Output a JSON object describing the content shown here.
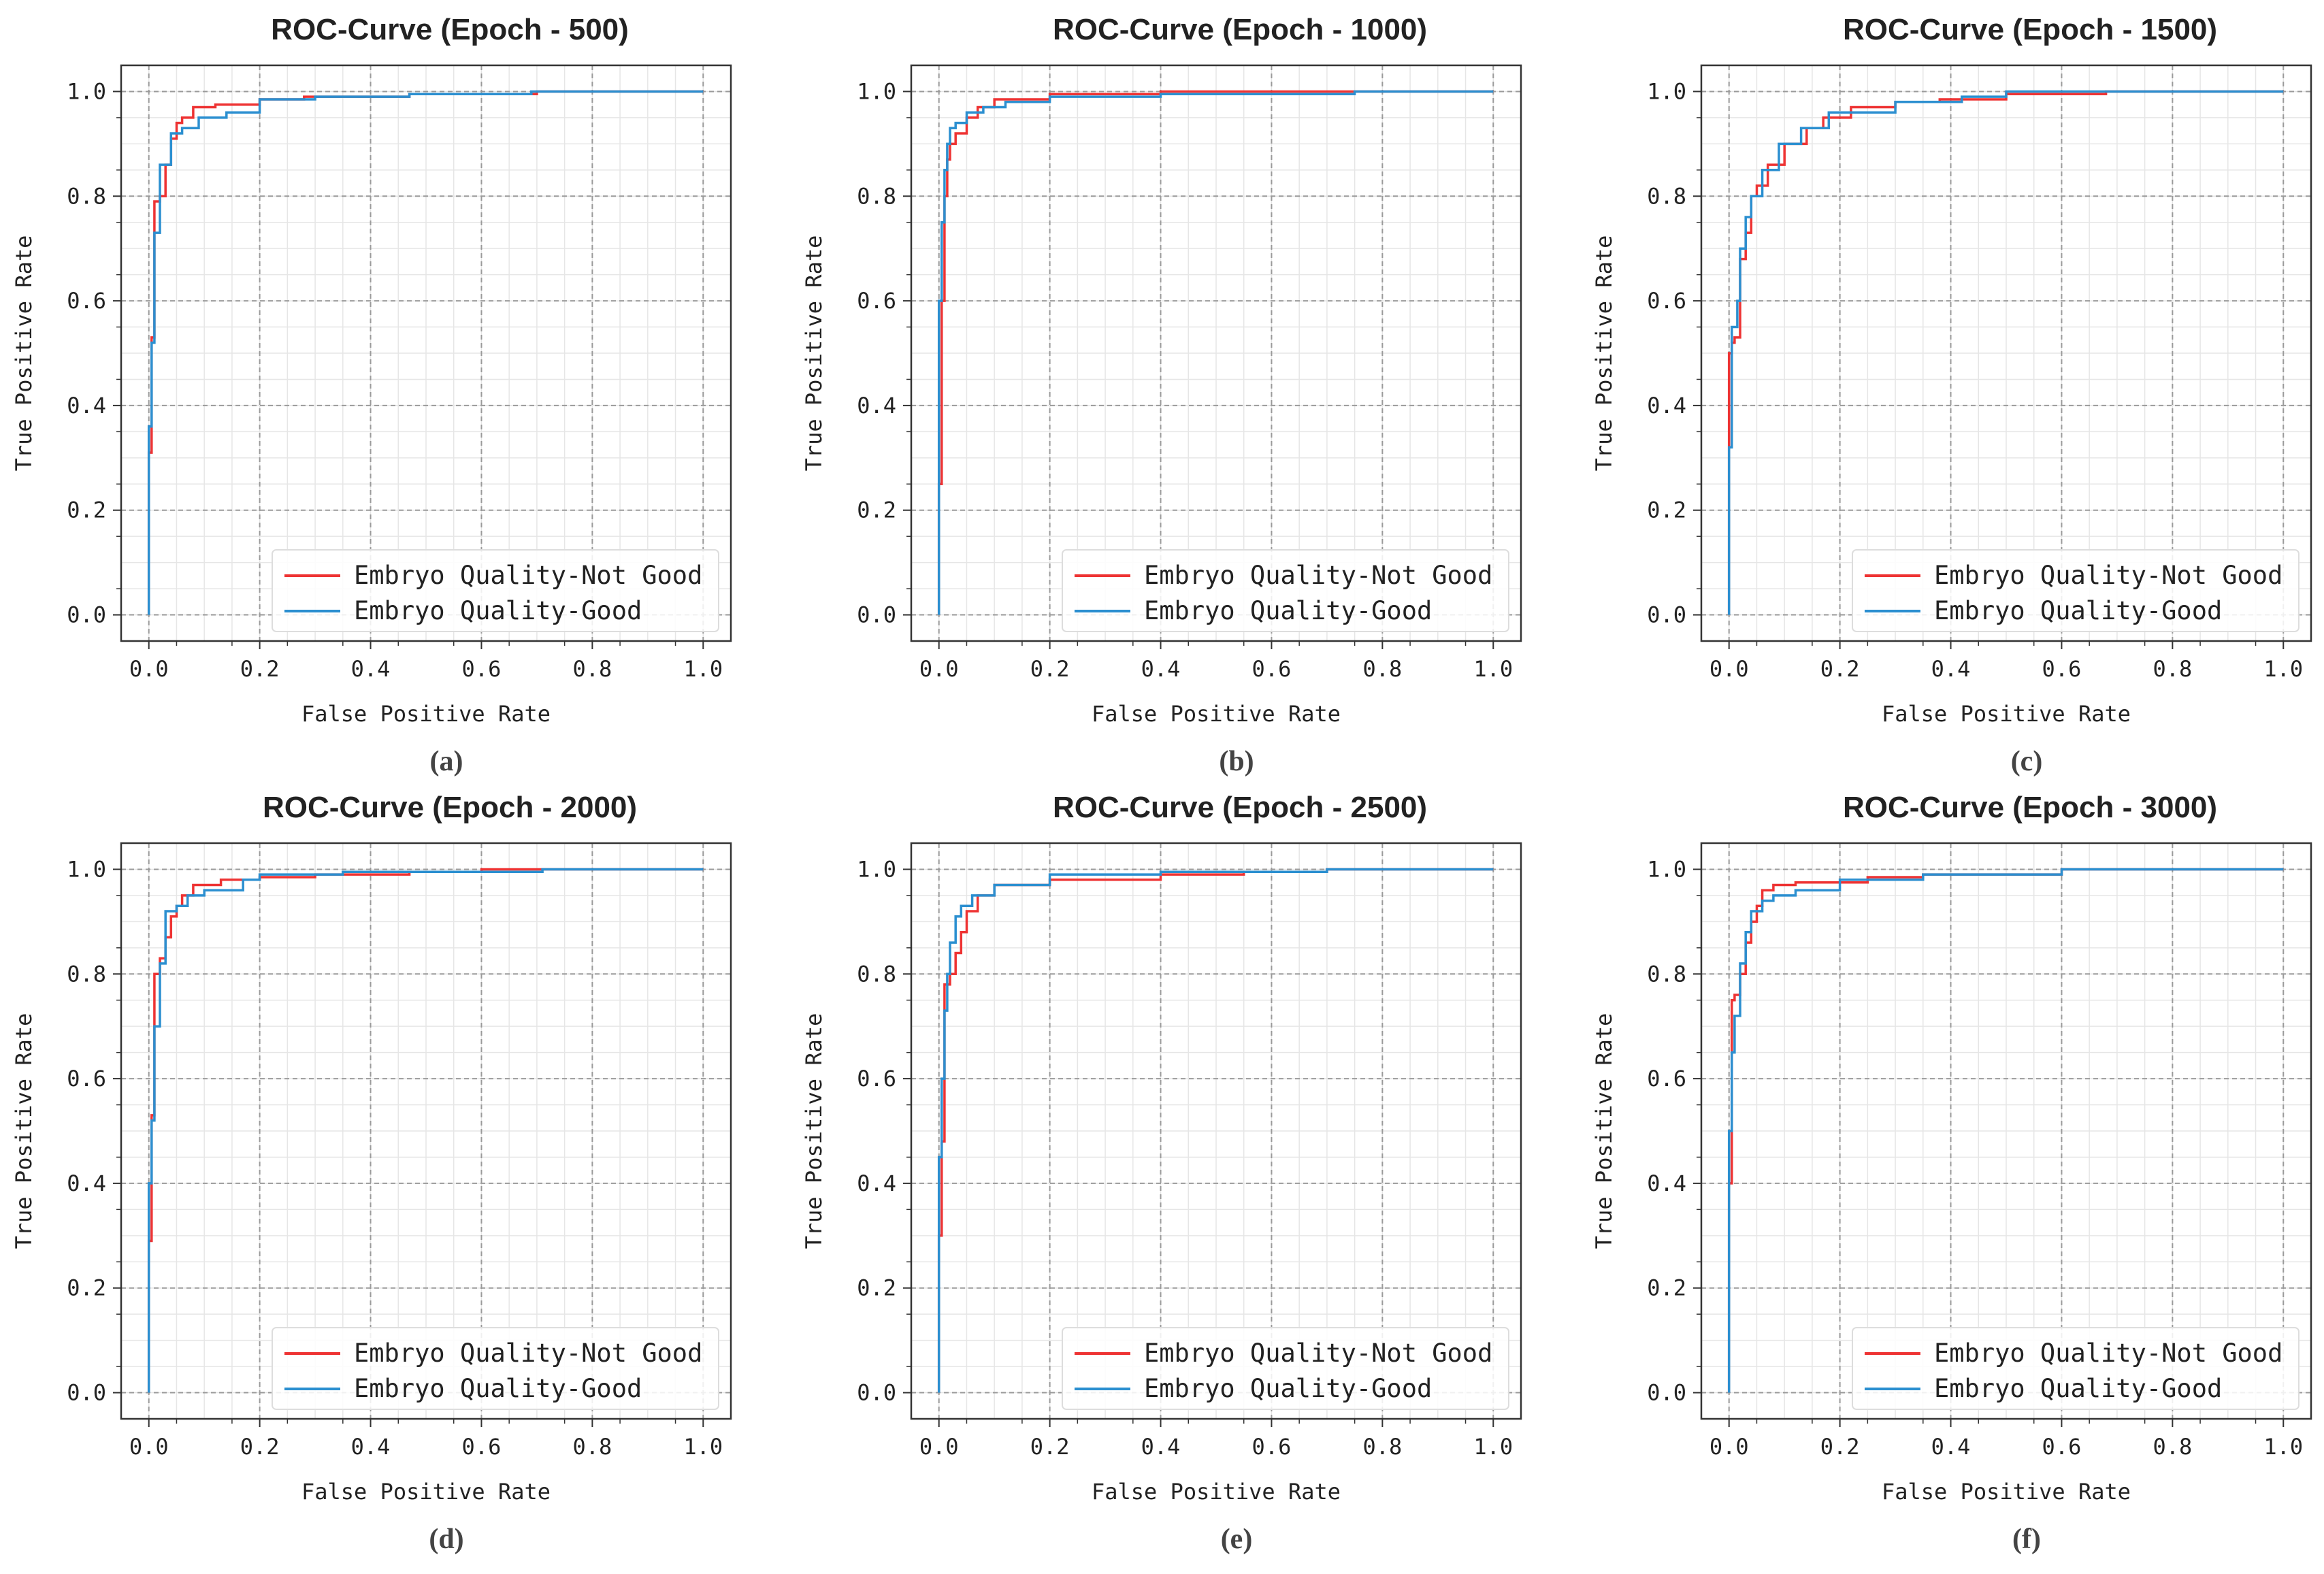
{
  "figure": {
    "captions": [
      "(a)",
      "(b)",
      "(c)",
      "(d)",
      "(e)",
      "(f)"
    ]
  },
  "colors": {
    "not_good": "#ee3333",
    "good": "#2b8fd0",
    "major_grid": "#9a9a9a",
    "minor_grid": "#e6e6e6",
    "axes": "#333333"
  },
  "chart_data": [
    {
      "type": "line",
      "title": "ROC-Curve (Epoch - 500)",
      "xlabel": "False Positive Rate",
      "ylabel": "True Positive Rate",
      "xlim": [
        -0.05,
        1.05
      ],
      "ylim": [
        -0.05,
        1.05
      ],
      "xticks": [
        "0.0",
        "0.2",
        "0.4",
        "0.6",
        "0.8",
        "1.0"
      ],
      "yticks": [
        "0.0",
        "0.2",
        "0.4",
        "0.6",
        "0.8",
        "1.0"
      ],
      "grid": true,
      "legend_position": "lower-right",
      "series": [
        {
          "name": "Embryo Quality-Not Good",
          "x": [
            0,
            0,
            0.005,
            0.005,
            0.01,
            0.01,
            0.02,
            0.02,
            0.03,
            0.03,
            0.04,
            0.04,
            0.05,
            0.05,
            0.06,
            0.06,
            0.08,
            0.08,
            0.12,
            0.12,
            0.2,
            0.2,
            0.28,
            0.28,
            0.47,
            0.47,
            0.7,
            0.7,
            1.0
          ],
          "y": [
            0,
            0.31,
            0.31,
            0.53,
            0.53,
            0.79,
            0.79,
            0.8,
            0.8,
            0.86,
            0.86,
            0.91,
            0.91,
            0.94,
            0.94,
            0.95,
            0.95,
            0.97,
            0.97,
            0.975,
            0.975,
            0.985,
            0.985,
            0.99,
            0.99,
            0.995,
            0.995,
            1.0,
            1.0
          ]
        },
        {
          "name": "Embryo Quality-Good",
          "x": [
            0,
            0,
            0.005,
            0.005,
            0.01,
            0.01,
            0.02,
            0.02,
            0.04,
            0.04,
            0.06,
            0.06,
            0.09,
            0.09,
            0.14,
            0.14,
            0.2,
            0.2,
            0.3,
            0.3,
            0.47,
            0.47,
            0.69,
            0.69,
            1.0
          ],
          "y": [
            0,
            0.36,
            0.36,
            0.52,
            0.52,
            0.73,
            0.73,
            0.86,
            0.86,
            0.92,
            0.92,
            0.93,
            0.93,
            0.95,
            0.95,
            0.96,
            0.96,
            0.985,
            0.985,
            0.99,
            0.99,
            0.995,
            0.995,
            1.0,
            1.0
          ]
        }
      ]
    },
    {
      "type": "line",
      "title": "ROC-Curve (Epoch - 1000)",
      "xlabel": "False Positive Rate",
      "ylabel": "True Positive Rate",
      "xlim": [
        -0.05,
        1.05
      ],
      "ylim": [
        -0.05,
        1.05
      ],
      "xticks": [
        "0.0",
        "0.2",
        "0.4",
        "0.6",
        "0.8",
        "1.0"
      ],
      "yticks": [
        "0.0",
        "0.2",
        "0.4",
        "0.6",
        "0.8",
        "1.0"
      ],
      "grid": true,
      "legend_position": "lower-right",
      "series": [
        {
          "name": "Embryo Quality-Not Good",
          "x": [
            0,
            0,
            0.005,
            0.005,
            0.01,
            0.01,
            0.015,
            0.015,
            0.02,
            0.02,
            0.03,
            0.03,
            0.05,
            0.05,
            0.07,
            0.07,
            0.1,
            0.1,
            0.2,
            0.2,
            0.4,
            0.4,
            1.0
          ],
          "y": [
            0,
            0.25,
            0.25,
            0.6,
            0.6,
            0.8,
            0.8,
            0.87,
            0.87,
            0.9,
            0.9,
            0.92,
            0.92,
            0.95,
            0.95,
            0.97,
            0.97,
            0.985,
            0.985,
            0.995,
            0.995,
            1.0,
            1.0
          ]
        },
        {
          "name": "Embryo Quality-Good",
          "x": [
            0,
            0,
            0.005,
            0.005,
            0.01,
            0.01,
            0.015,
            0.015,
            0.02,
            0.02,
            0.03,
            0.03,
            0.05,
            0.05,
            0.08,
            0.08,
            0.12,
            0.12,
            0.2,
            0.2,
            0.4,
            0.4,
            0.75,
            0.75,
            1.0
          ],
          "y": [
            0,
            0.6,
            0.6,
            0.75,
            0.75,
            0.85,
            0.85,
            0.9,
            0.9,
            0.93,
            0.93,
            0.94,
            0.94,
            0.96,
            0.96,
            0.97,
            0.97,
            0.98,
            0.98,
            0.99,
            0.99,
            0.995,
            0.995,
            1.0,
            1.0
          ]
        }
      ]
    },
    {
      "type": "line",
      "title": "ROC-Curve (Epoch - 1500)",
      "xlabel": "False Positive Rate",
      "ylabel": "True Positive Rate",
      "xlim": [
        -0.05,
        1.05
      ],
      "ylim": [
        -0.05,
        1.05
      ],
      "xticks": [
        "0.0",
        "0.2",
        "0.4",
        "0.6",
        "0.8",
        "1.0"
      ],
      "yticks": [
        "0.0",
        "0.2",
        "0.4",
        "0.6",
        "0.8",
        "1.0"
      ],
      "grid": true,
      "legend_position": "lower-right",
      "series": [
        {
          "name": "Embryo Quality-Not Good",
          "x": [
            0,
            0,
            0.005,
            0.005,
            0.01,
            0.01,
            0.02,
            0.02,
            0.03,
            0.03,
            0.04,
            0.04,
            0.05,
            0.05,
            0.07,
            0.07,
            0.1,
            0.1,
            0.14,
            0.14,
            0.17,
            0.17,
            0.22,
            0.22,
            0.3,
            0.3,
            0.38,
            0.38,
            0.5,
            0.5,
            0.68,
            0.68,
            1.0
          ],
          "y": [
            0,
            0.5,
            0.5,
            0.52,
            0.52,
            0.53,
            0.53,
            0.68,
            0.68,
            0.73,
            0.73,
            0.8,
            0.8,
            0.82,
            0.82,
            0.86,
            0.86,
            0.9,
            0.9,
            0.93,
            0.93,
            0.95,
            0.95,
            0.97,
            0.97,
            0.98,
            0.98,
            0.985,
            0.985,
            0.995,
            0.995,
            1.0,
            1.0
          ]
        },
        {
          "name": "Embryo Quality-Good",
          "x": [
            0,
            0,
            0.005,
            0.005,
            0.015,
            0.015,
            0.02,
            0.02,
            0.03,
            0.03,
            0.04,
            0.04,
            0.06,
            0.06,
            0.09,
            0.09,
            0.13,
            0.13,
            0.18,
            0.18,
            0.3,
            0.3,
            0.42,
            0.42,
            0.5,
            0.5,
            1.0
          ],
          "y": [
            0,
            0.32,
            0.32,
            0.55,
            0.55,
            0.6,
            0.6,
            0.7,
            0.7,
            0.76,
            0.76,
            0.8,
            0.8,
            0.85,
            0.85,
            0.9,
            0.9,
            0.93,
            0.93,
            0.96,
            0.96,
            0.98,
            0.98,
            0.99,
            0.99,
            1.0,
            1.0
          ]
        }
      ]
    },
    {
      "type": "line",
      "title": "ROC-Curve (Epoch - 2000)",
      "xlabel": "False Positive Rate",
      "ylabel": "True Positive Rate",
      "xlim": [
        -0.05,
        1.05
      ],
      "ylim": [
        -0.05,
        1.05
      ],
      "xticks": [
        "0.0",
        "0.2",
        "0.4",
        "0.6",
        "0.8",
        "1.0"
      ],
      "yticks": [
        "0.0",
        "0.2",
        "0.4",
        "0.6",
        "0.8",
        "1.0"
      ],
      "grid": true,
      "legend_position": "lower-right",
      "series": [
        {
          "name": "Embryo Quality-Not Good",
          "x": [
            0,
            0,
            0.005,
            0.005,
            0.01,
            0.01,
            0.02,
            0.02,
            0.03,
            0.03,
            0.04,
            0.04,
            0.05,
            0.05,
            0.06,
            0.06,
            0.08,
            0.08,
            0.13,
            0.13,
            0.2,
            0.2,
            0.3,
            0.3,
            0.47,
            0.47,
            0.6,
            0.6,
            1.0
          ],
          "y": [
            0,
            0.29,
            0.29,
            0.53,
            0.53,
            0.8,
            0.8,
            0.83,
            0.83,
            0.87,
            0.87,
            0.91,
            0.91,
            0.93,
            0.93,
            0.95,
            0.95,
            0.97,
            0.97,
            0.98,
            0.98,
            0.985,
            0.985,
            0.99,
            0.99,
            0.995,
            0.995,
            1.0,
            1.0
          ]
        },
        {
          "name": "Embryo Quality-Good",
          "x": [
            0,
            0,
            0.005,
            0.005,
            0.01,
            0.01,
            0.02,
            0.02,
            0.03,
            0.03,
            0.05,
            0.05,
            0.07,
            0.07,
            0.1,
            0.1,
            0.17,
            0.17,
            0.2,
            0.2,
            0.35,
            0.35,
            0.71,
            0.71,
            1.0
          ],
          "y": [
            0,
            0.4,
            0.4,
            0.52,
            0.52,
            0.7,
            0.7,
            0.82,
            0.82,
            0.92,
            0.92,
            0.93,
            0.93,
            0.95,
            0.95,
            0.96,
            0.96,
            0.98,
            0.98,
            0.99,
            0.99,
            0.995,
            0.995,
            1.0,
            1.0
          ]
        }
      ]
    },
    {
      "type": "line",
      "title": "ROC-Curve (Epoch - 2500)",
      "xlabel": "False Positive Rate",
      "ylabel": "True Positive Rate",
      "xlim": [
        -0.05,
        1.05
      ],
      "ylim": [
        -0.05,
        1.05
      ],
      "xticks": [
        "0.0",
        "0.2",
        "0.4",
        "0.6",
        "0.8",
        "1.0"
      ],
      "yticks": [
        "0.0",
        "0.2",
        "0.4",
        "0.6",
        "0.8",
        "1.0"
      ],
      "grid": true,
      "legend_position": "lower-right",
      "series": [
        {
          "name": "Embryo Quality-Not Good",
          "x": [
            0,
            0,
            0.005,
            0.005,
            0.01,
            0.01,
            0.02,
            0.02,
            0.03,
            0.03,
            0.04,
            0.04,
            0.05,
            0.05,
            0.07,
            0.07,
            0.1,
            0.1,
            0.2,
            0.2,
            0.4,
            0.4,
            0.55,
            0.55,
            0.7,
            0.7,
            1.0
          ],
          "y": [
            0,
            0.3,
            0.3,
            0.48,
            0.48,
            0.78,
            0.78,
            0.8,
            0.8,
            0.84,
            0.84,
            0.88,
            0.88,
            0.92,
            0.92,
            0.95,
            0.95,
            0.97,
            0.97,
            0.98,
            0.98,
            0.99,
            0.99,
            0.995,
            0.995,
            1.0,
            1.0
          ]
        },
        {
          "name": "Embryo Quality-Good",
          "x": [
            0,
            0,
            0.005,
            0.005,
            0.01,
            0.01,
            0.015,
            0.015,
            0.02,
            0.02,
            0.03,
            0.03,
            0.04,
            0.04,
            0.06,
            0.06,
            0.1,
            0.1,
            0.2,
            0.2,
            0.4,
            0.4,
            0.7,
            0.7,
            1.0
          ],
          "y": [
            0,
            0.45,
            0.45,
            0.6,
            0.6,
            0.73,
            0.73,
            0.8,
            0.8,
            0.86,
            0.86,
            0.91,
            0.91,
            0.93,
            0.93,
            0.95,
            0.95,
            0.97,
            0.97,
            0.99,
            0.99,
            0.995,
            0.995,
            1.0,
            1.0
          ]
        }
      ]
    },
    {
      "type": "line",
      "title": "ROC-Curve (Epoch - 3000)",
      "xlabel": "False Positive Rate",
      "ylabel": "True Positive Rate",
      "xlim": [
        -0.05,
        1.05
      ],
      "ylim": [
        -0.05,
        1.05
      ],
      "xticks": [
        "0.0",
        "0.2",
        "0.4",
        "0.6",
        "0.8",
        "1.0"
      ],
      "yticks": [
        "0.0",
        "0.2",
        "0.4",
        "0.6",
        "0.8",
        "1.0"
      ],
      "grid": true,
      "legend_position": "lower-right",
      "series": [
        {
          "name": "Embryo Quality-Not Good",
          "x": [
            0,
            0,
            0.005,
            0.005,
            0.01,
            0.01,
            0.02,
            0.02,
            0.03,
            0.03,
            0.04,
            0.04,
            0.05,
            0.05,
            0.06,
            0.06,
            0.08,
            0.08,
            0.12,
            0.12,
            0.25,
            0.25,
            0.35,
            0.35,
            0.6,
            0.6,
            1.0
          ],
          "y": [
            0,
            0.4,
            0.4,
            0.75,
            0.75,
            0.76,
            0.76,
            0.8,
            0.8,
            0.86,
            0.86,
            0.9,
            0.9,
            0.93,
            0.93,
            0.96,
            0.96,
            0.97,
            0.97,
            0.975,
            0.975,
            0.985,
            0.985,
            0.99,
            0.99,
            1.0,
            1.0
          ]
        },
        {
          "name": "Embryo Quality-Good",
          "x": [
            0,
            0,
            0.005,
            0.005,
            0.01,
            0.01,
            0.02,
            0.02,
            0.03,
            0.03,
            0.04,
            0.04,
            0.06,
            0.06,
            0.08,
            0.08,
            0.12,
            0.12,
            0.2,
            0.2,
            0.35,
            0.35,
            0.6,
            0.6,
            1.0
          ],
          "y": [
            0,
            0.5,
            0.5,
            0.65,
            0.65,
            0.72,
            0.72,
            0.82,
            0.82,
            0.88,
            0.88,
            0.92,
            0.92,
            0.94,
            0.94,
            0.95,
            0.95,
            0.96,
            0.96,
            0.98,
            0.98,
            0.99,
            0.99,
            1.0,
            1.0
          ]
        }
      ]
    }
  ]
}
